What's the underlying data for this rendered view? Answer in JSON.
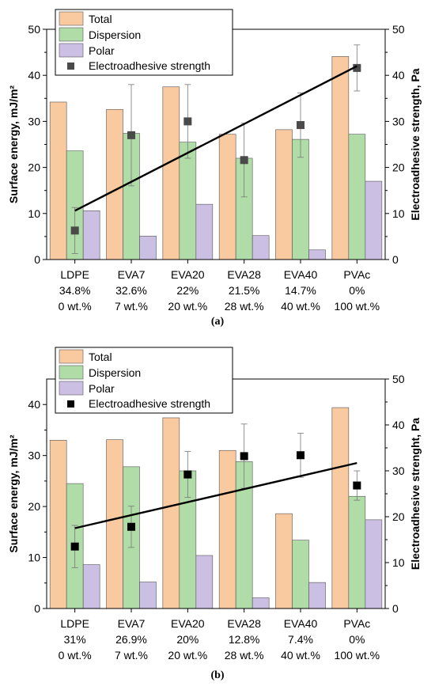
{
  "chart_data": [
    {
      "type": "bar",
      "panel_label": "(a)",
      "categories": [
        "LDPE",
        "EVA7",
        "EVA20",
        "EVA28",
        "EVA40",
        "PVAc"
      ],
      "category_lines": [
        [
          "LDPE",
          "34.8%",
          "0 wt.%"
        ],
        [
          "EVA7",
          "32.6%",
          "7 wt.%"
        ],
        [
          "EVA20",
          "22%",
          "20 wt.%"
        ],
        [
          "EVA28",
          "21.5%",
          "28 wt.%"
        ],
        [
          "EVA40",
          "14.7%",
          "40 wt.%"
        ],
        [
          "PVAc",
          "0%",
          "100 wt.%"
        ]
      ],
      "ylabel": "Surface energy, mJ/m²",
      "ylabel_right": "Electroadhesive strength, Pa",
      "ylim": [
        0,
        50
      ],
      "yticks": [
        "0",
        "10",
        "20",
        "30",
        "40",
        "50"
      ],
      "ylim_right": [
        0,
        50
      ],
      "yticks_right": [
        "0",
        "10",
        "20",
        "30",
        "40",
        "50"
      ],
      "legend_position": "top-left",
      "series": [
        {
          "name": "Total",
          "color": "#f9c9a0",
          "values": [
            34.2,
            32.6,
            37.5,
            27.2,
            28.2,
            44.1
          ]
        },
        {
          "name": "Dispersion",
          "color": "#b0dca8",
          "values": [
            23.6,
            27.4,
            25.5,
            22.0,
            26.1,
            27.2
          ]
        },
        {
          "name": "Polar",
          "color": "#cbbfe3",
          "values": [
            10.6,
            5.1,
            12.0,
            5.2,
            2.1,
            17.0
          ]
        }
      ],
      "electroadhesive": {
        "name": "Electroadhesive strength",
        "marker_color": "#4a4a4a",
        "values": [
          6.3,
          27.0,
          30.0,
          21.6,
          29.2,
          41.6
        ],
        "errors": [
          5.0,
          11.0,
          8.0,
          8.0,
          7.0,
          5.0
        ],
        "trend_line": [
          10.6,
          42.0
        ]
      }
    },
    {
      "type": "bar",
      "panel_label": "(b)",
      "categories": [
        "LDPE",
        "EVA7",
        "EVA20",
        "EVA28",
        "EVA40",
        "PVAc"
      ],
      "category_lines": [
        [
          "LDPE",
          "31%",
          "0 wt.%"
        ],
        [
          "EVA7",
          "26.9%",
          "7 wt.%"
        ],
        [
          "EVA20",
          "20%",
          "20 wt.%"
        ],
        [
          "EVA28",
          "12.8%",
          "28 wt.%"
        ],
        [
          "EVA40",
          "7.4%",
          "40 wt.%"
        ],
        [
          "PVAc",
          "0%",
          "100 wt.%"
        ]
      ],
      "ylabel": "Surface energy, mJ/m²",
      "ylabel_right": "Electroadhesive strenght, Pa",
      "ylim": [
        0,
        45
      ],
      "yticks": [
        "0",
        "10",
        "20",
        "30",
        "40"
      ],
      "ylim_right": [
        0,
        50
      ],
      "yticks_right": [
        "0",
        "10",
        "20",
        "30",
        "40",
        "50"
      ],
      "legend_position": "top-left",
      "series": [
        {
          "name": "Total",
          "color": "#f9c9a0",
          "values": [
            33.0,
            33.1,
            37.4,
            31.0,
            18.6,
            39.4
          ]
        },
        {
          "name": "Dispersion",
          "color": "#b0dca8",
          "values": [
            24.5,
            27.8,
            27.0,
            28.8,
            13.4,
            22.0
          ]
        },
        {
          "name": "Polar",
          "color": "#cbbfe3",
          "values": [
            8.6,
            5.2,
            10.4,
            2.1,
            5.1,
            17.4
          ]
        }
      ],
      "electroadhesive": {
        "name": "Electroadhesive strength",
        "marker_color": "#000000",
        "values": [
          13.5,
          17.8,
          29.2,
          33.2,
          33.4,
          26.8
        ],
        "errors": [
          4.6,
          4.5,
          5.0,
          7.0,
          4.8,
          3.2
        ],
        "trend_line": [
          17.5,
          31.7
        ]
      }
    }
  ]
}
